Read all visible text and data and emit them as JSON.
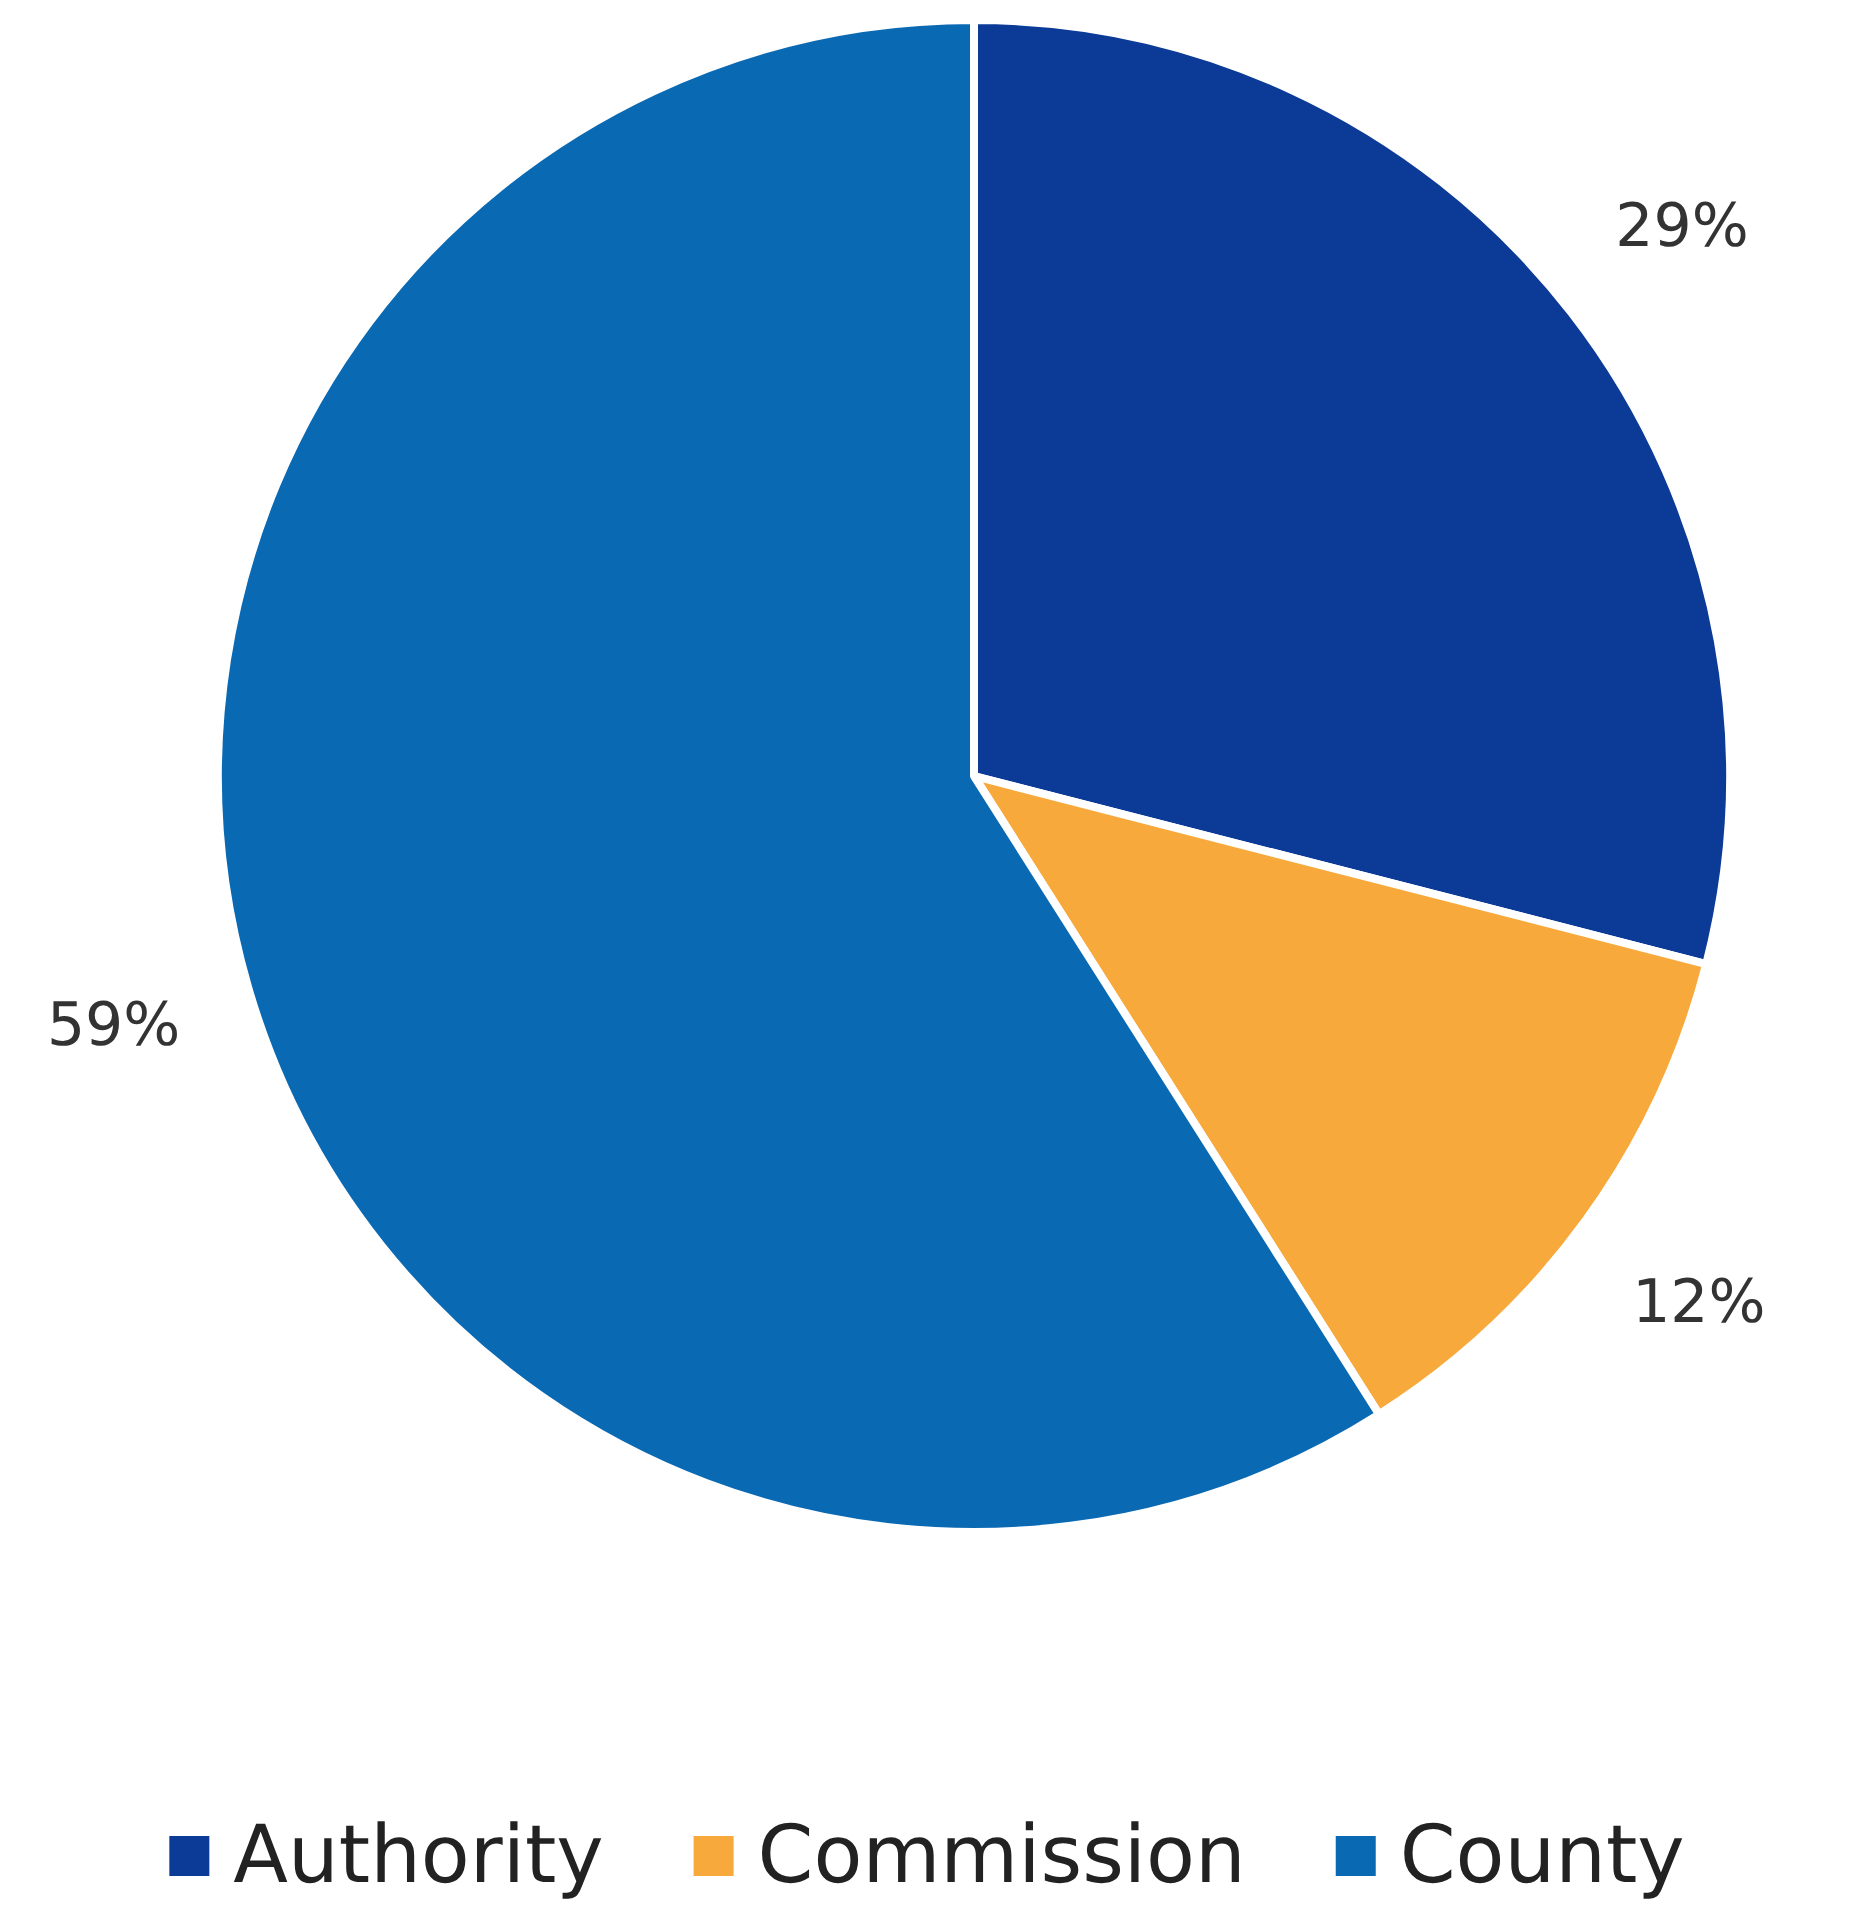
{
  "chart_data": {
    "type": "pie",
    "categories": [
      "Authority",
      "Commission",
      "County"
    ],
    "values": [
      29,
      12,
      59
    ],
    "colors": [
      "#0b3a97",
      "#f8a93b",
      "#0a69b3"
    ],
    "value_labels": [
      "29%",
      "12%",
      "59%"
    ],
    "legend": "bottom"
  }
}
